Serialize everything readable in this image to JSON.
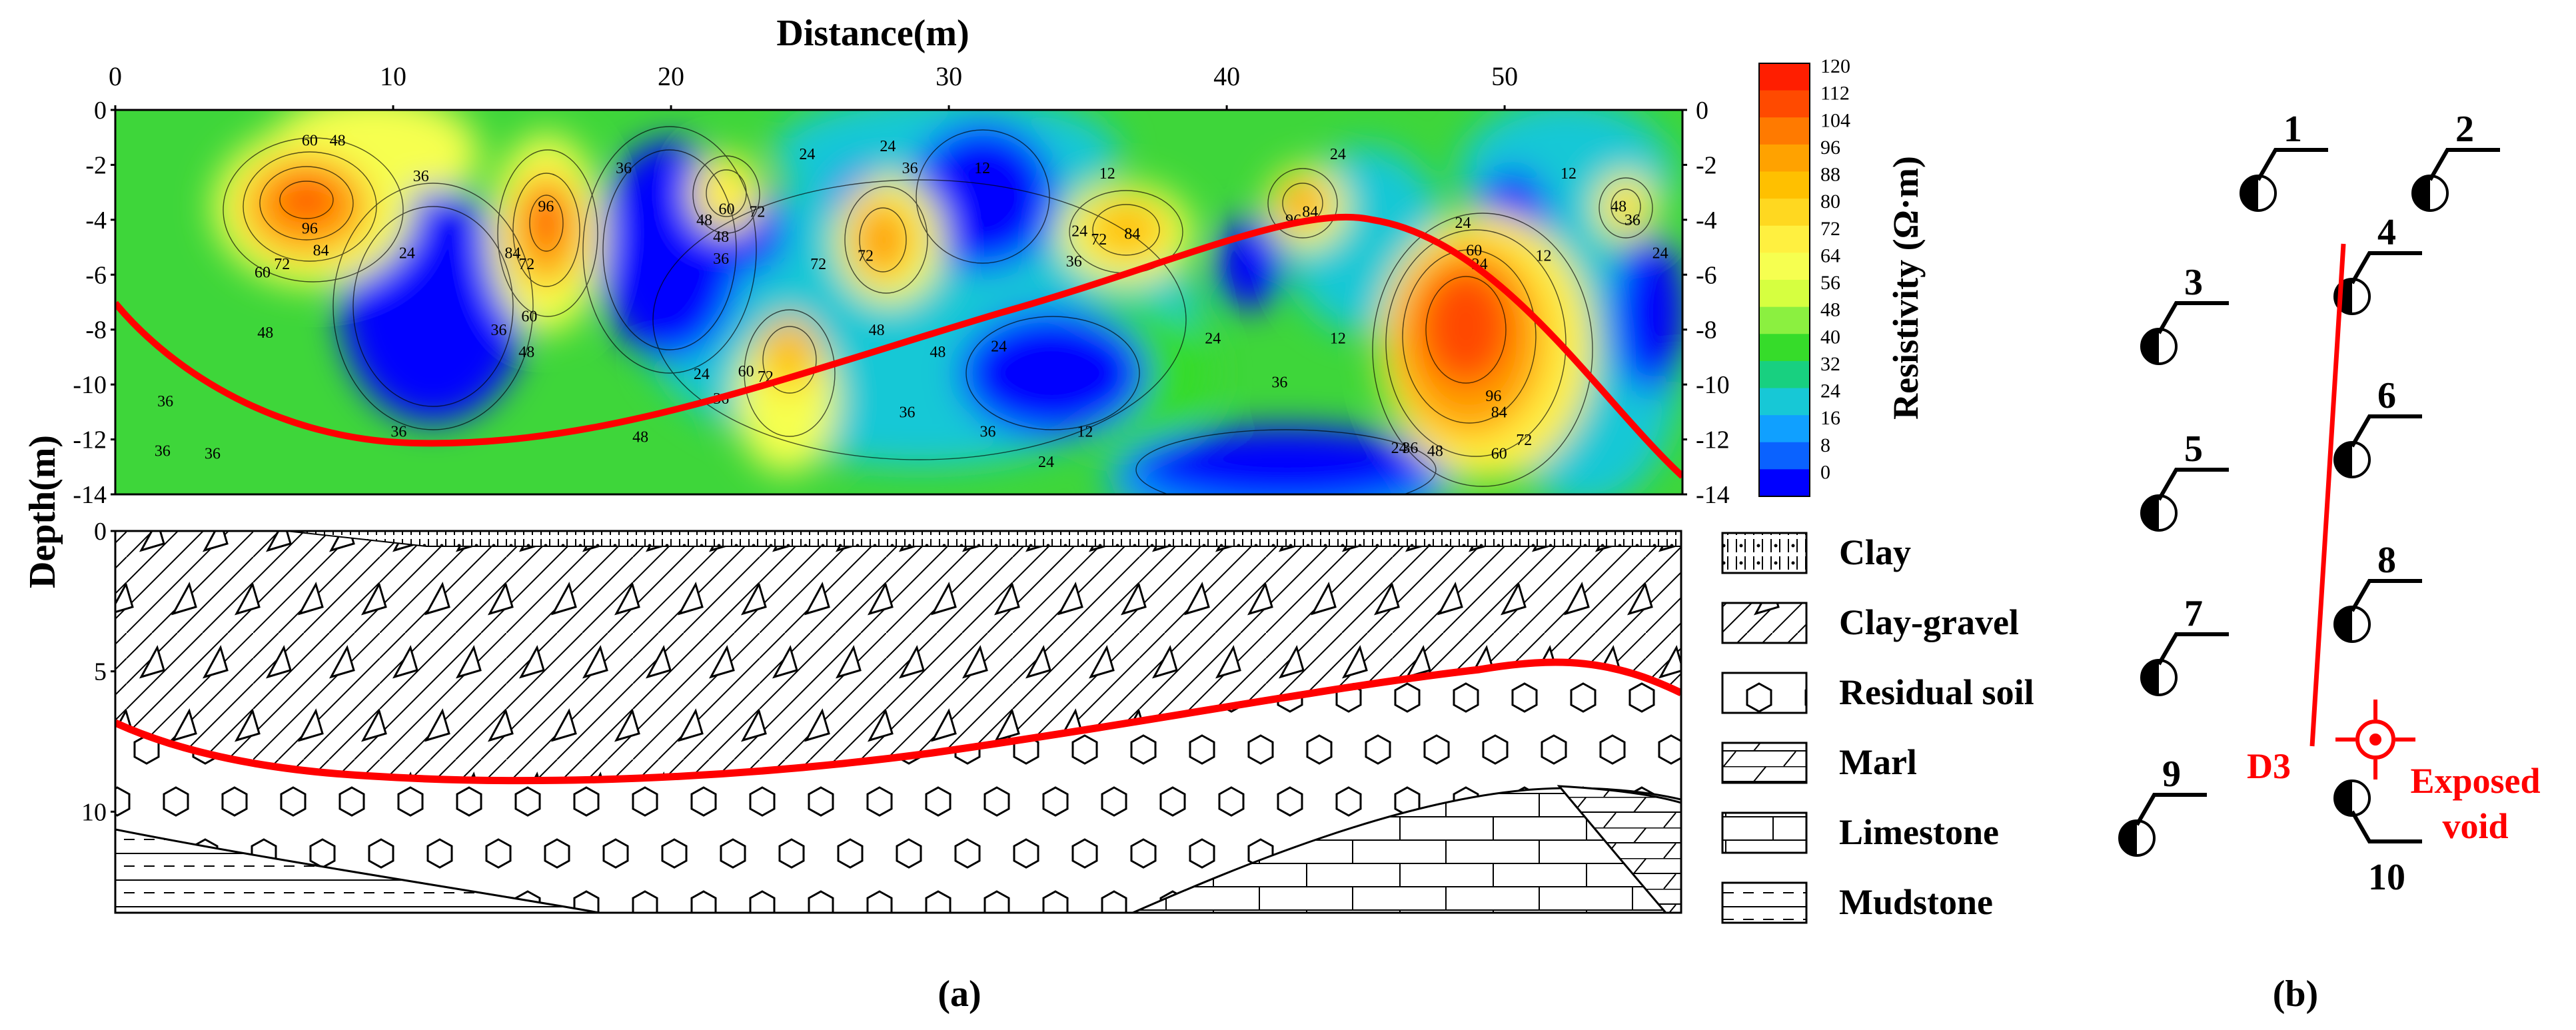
{
  "panel_a": {
    "section": {
      "x_title": "Distance(m)",
      "y_title": "Depth(m)",
      "x_ticks": [
        "0",
        "10",
        "20",
        "30",
        "40",
        "50"
      ],
      "depth_ticks": [
        "0",
        "-2",
        "-4",
        "-6",
        "-8",
        "-10",
        "-12",
        "-14"
      ],
      "contour_labels": [
        {
          "d": 7,
          "z": -1.3,
          "t": "60"
        },
        {
          "d": 8,
          "z": -1.3,
          "t": "48"
        },
        {
          "d": 7,
          "z": -4.5,
          "t": "96"
        },
        {
          "d": 7.4,
          "z": -5.3,
          "t": "84"
        },
        {
          "d": 6,
          "z": -5.8,
          "t": "72"
        },
        {
          "d": 5.3,
          "z": -6.1,
          "t": "60"
        },
        {
          "d": 5.4,
          "z": -8.3,
          "t": "48"
        },
        {
          "d": 10.5,
          "z": -5.4,
          "t": "24"
        },
        {
          "d": 11,
          "z": -2.6,
          "t": "36"
        },
        {
          "d": 15.5,
          "z": -3.7,
          "t": "96"
        },
        {
          "d": 14.3,
          "z": -5.4,
          "t": "84"
        },
        {
          "d": 14.8,
          "z": -5.8,
          "t": "72"
        },
        {
          "d": 14.9,
          "z": -7.7,
          "t": "60"
        },
        {
          "d": 13.8,
          "z": -8.2,
          "t": "36"
        },
        {
          "d": 14.8,
          "z": -9.0,
          "t": "48"
        },
        {
          "d": 18.3,
          "z": -2.3,
          "t": "36"
        },
        {
          "d": 22,
          "z": -3.8,
          "t": "60"
        },
        {
          "d": 21.8,
          "z": -4.8,
          "t": "48"
        },
        {
          "d": 23.1,
          "z": -3.9,
          "t": "72"
        },
        {
          "d": 21.2,
          "z": -4.2,
          "t": "48"
        },
        {
          "d": 21.8,
          "z": -5.6,
          "t": "36"
        },
        {
          "d": 21.1,
          "z": -9.8,
          "t": "24"
        },
        {
          "d": 21.8,
          "z": -10.7,
          "t": "36"
        },
        {
          "d": 23.4,
          "z": -9.9,
          "t": "72"
        },
        {
          "d": 22.7,
          "z": -9.7,
          "t": "60"
        },
        {
          "d": 24.9,
          "z": -1.8,
          "t": "24"
        },
        {
          "d": 25.3,
          "z": -5.8,
          "t": "72"
        },
        {
          "d": 27,
          "z": -5.5,
          "t": "72"
        },
        {
          "d": 27.4,
          "z": -8.2,
          "t": "48"
        },
        {
          "d": 27.8,
          "z": -1.5,
          "t": "24"
        },
        {
          "d": 28.6,
          "z": -2.3,
          "t": "36"
        },
        {
          "d": 31.2,
          "z": -2.3,
          "t": "12"
        },
        {
          "d": 34.7,
          "z": -4.6,
          "t": "24"
        },
        {
          "d": 34.5,
          "z": -5.7,
          "t": "36"
        },
        {
          "d": 35.4,
          "z": -4.9,
          "t": "72"
        },
        {
          "d": 36.6,
          "z": -4.7,
          "t": "84"
        },
        {
          "d": 35.7,
          "z": -2.5,
          "t": "12"
        },
        {
          "d": 29.6,
          "z": -9.0,
          "t": "48"
        },
        {
          "d": 28.5,
          "z": -11.2,
          "t": "36"
        },
        {
          "d": 31.4,
          "z": -11.9,
          "t": "36"
        },
        {
          "d": 31.8,
          "z": -8.8,
          "t": "24"
        },
        {
          "d": 34.9,
          "z": -11.9,
          "t": "12"
        },
        {
          "d": 33.5,
          "z": -13.0,
          "t": "24"
        },
        {
          "d": 39.5,
          "z": -8.5,
          "t": "24"
        },
        {
          "d": 42.4,
          "z": -4.2,
          "t": "96"
        },
        {
          "d": 43,
          "z": -3.9,
          "t": "84"
        },
        {
          "d": 44,
          "z": -1.8,
          "t": "24"
        },
        {
          "d": 44,
          "z": -8.5,
          "t": "12"
        },
        {
          "d": 41.9,
          "z": -10.1,
          "t": "36"
        },
        {
          "d": 48.5,
          "z": -4.3,
          "t": "24"
        },
        {
          "d": 48.9,
          "z": -5.3,
          "t": "60"
        },
        {
          "d": 49.1,
          "z": -5.8,
          "t": "24"
        },
        {
          "d": 51.4,
          "z": -5.5,
          "t": "12"
        },
        {
          "d": 49.6,
          "z": -10.6,
          "t": "96"
        },
        {
          "d": 49.8,
          "z": -11.2,
          "t": "84"
        },
        {
          "d": 50.7,
          "z": -12.2,
          "t": "72"
        },
        {
          "d": 49.8,
          "z": -12.7,
          "t": "60"
        },
        {
          "d": 47.5,
          "z": -12.6,
          "t": "48"
        },
        {
          "d": 46.6,
          "z": -12.5,
          "t": "36"
        },
        {
          "d": 46.2,
          "z": -12.5,
          "t": "24"
        },
        {
          "d": 54.1,
          "z": -3.7,
          "t": "48"
        },
        {
          "d": 54.6,
          "z": -4.2,
          "t": "36"
        },
        {
          "d": 55.6,
          "z": -5.4,
          "t": "24"
        },
        {
          "d": 52.3,
          "z": -2.5,
          "t": "12"
        },
        {
          "d": 1.8,
          "z": -10.8,
          "t": "36"
        },
        {
          "d": 1.7,
          "z": -12.6,
          "t": "36"
        },
        {
          "d": 10.2,
          "z": -11.9,
          "t": "36"
        },
        {
          "d": 18.9,
          "z": -12.1,
          "t": "48"
        },
        {
          "d": 3.5,
          "z": -12.7,
          "t": "36"
        }
      ]
    },
    "colorbar": {
      "title": "Resistivity (Ω·m)",
      "ticks": [
        "120",
        "112",
        "104",
        "96",
        "88",
        "80",
        "72",
        "64",
        "56",
        "48",
        "40",
        "32",
        "24",
        "16",
        "8",
        "0"
      ],
      "colors": [
        "#ff1e00",
        "#ff4a00",
        "#ff7a00",
        "#ffa200",
        "#ffc000",
        "#ffd820",
        "#fff040",
        "#f6ff50",
        "#d6ff40",
        "#8bf040",
        "#36dc2a",
        "#18d080",
        "#17c8d6",
        "#10a0ff",
        "#0a62ff",
        "#0000ff"
      ]
    },
    "log": {
      "depth_ticks": [
        "0",
        "5",
        "10"
      ]
    },
    "legend": [
      {
        "label": "Clay",
        "icon": "clay-pattern"
      },
      {
        "label": "Clay-gravel",
        "icon": "clay-gravel-pattern"
      },
      {
        "label": "Residual soil",
        "icon": "residual-soil-pattern"
      },
      {
        "label": "Marl",
        "icon": "marl-pattern"
      },
      {
        "label": "Limestone",
        "icon": "limestone-pattern"
      },
      {
        "label": "Mudstone",
        "icon": "mudstone-pattern"
      }
    ],
    "caption": "(a)"
  },
  "panel_b": {
    "boreholes": [
      "1",
      "2",
      "3",
      "4",
      "5",
      "6",
      "7",
      "8",
      "9",
      "10"
    ],
    "line_label": "D3",
    "void_label_1": "Exposed",
    "void_label_2": "void",
    "caption": "(b)",
    "accent_color": "#ff0000"
  }
}
